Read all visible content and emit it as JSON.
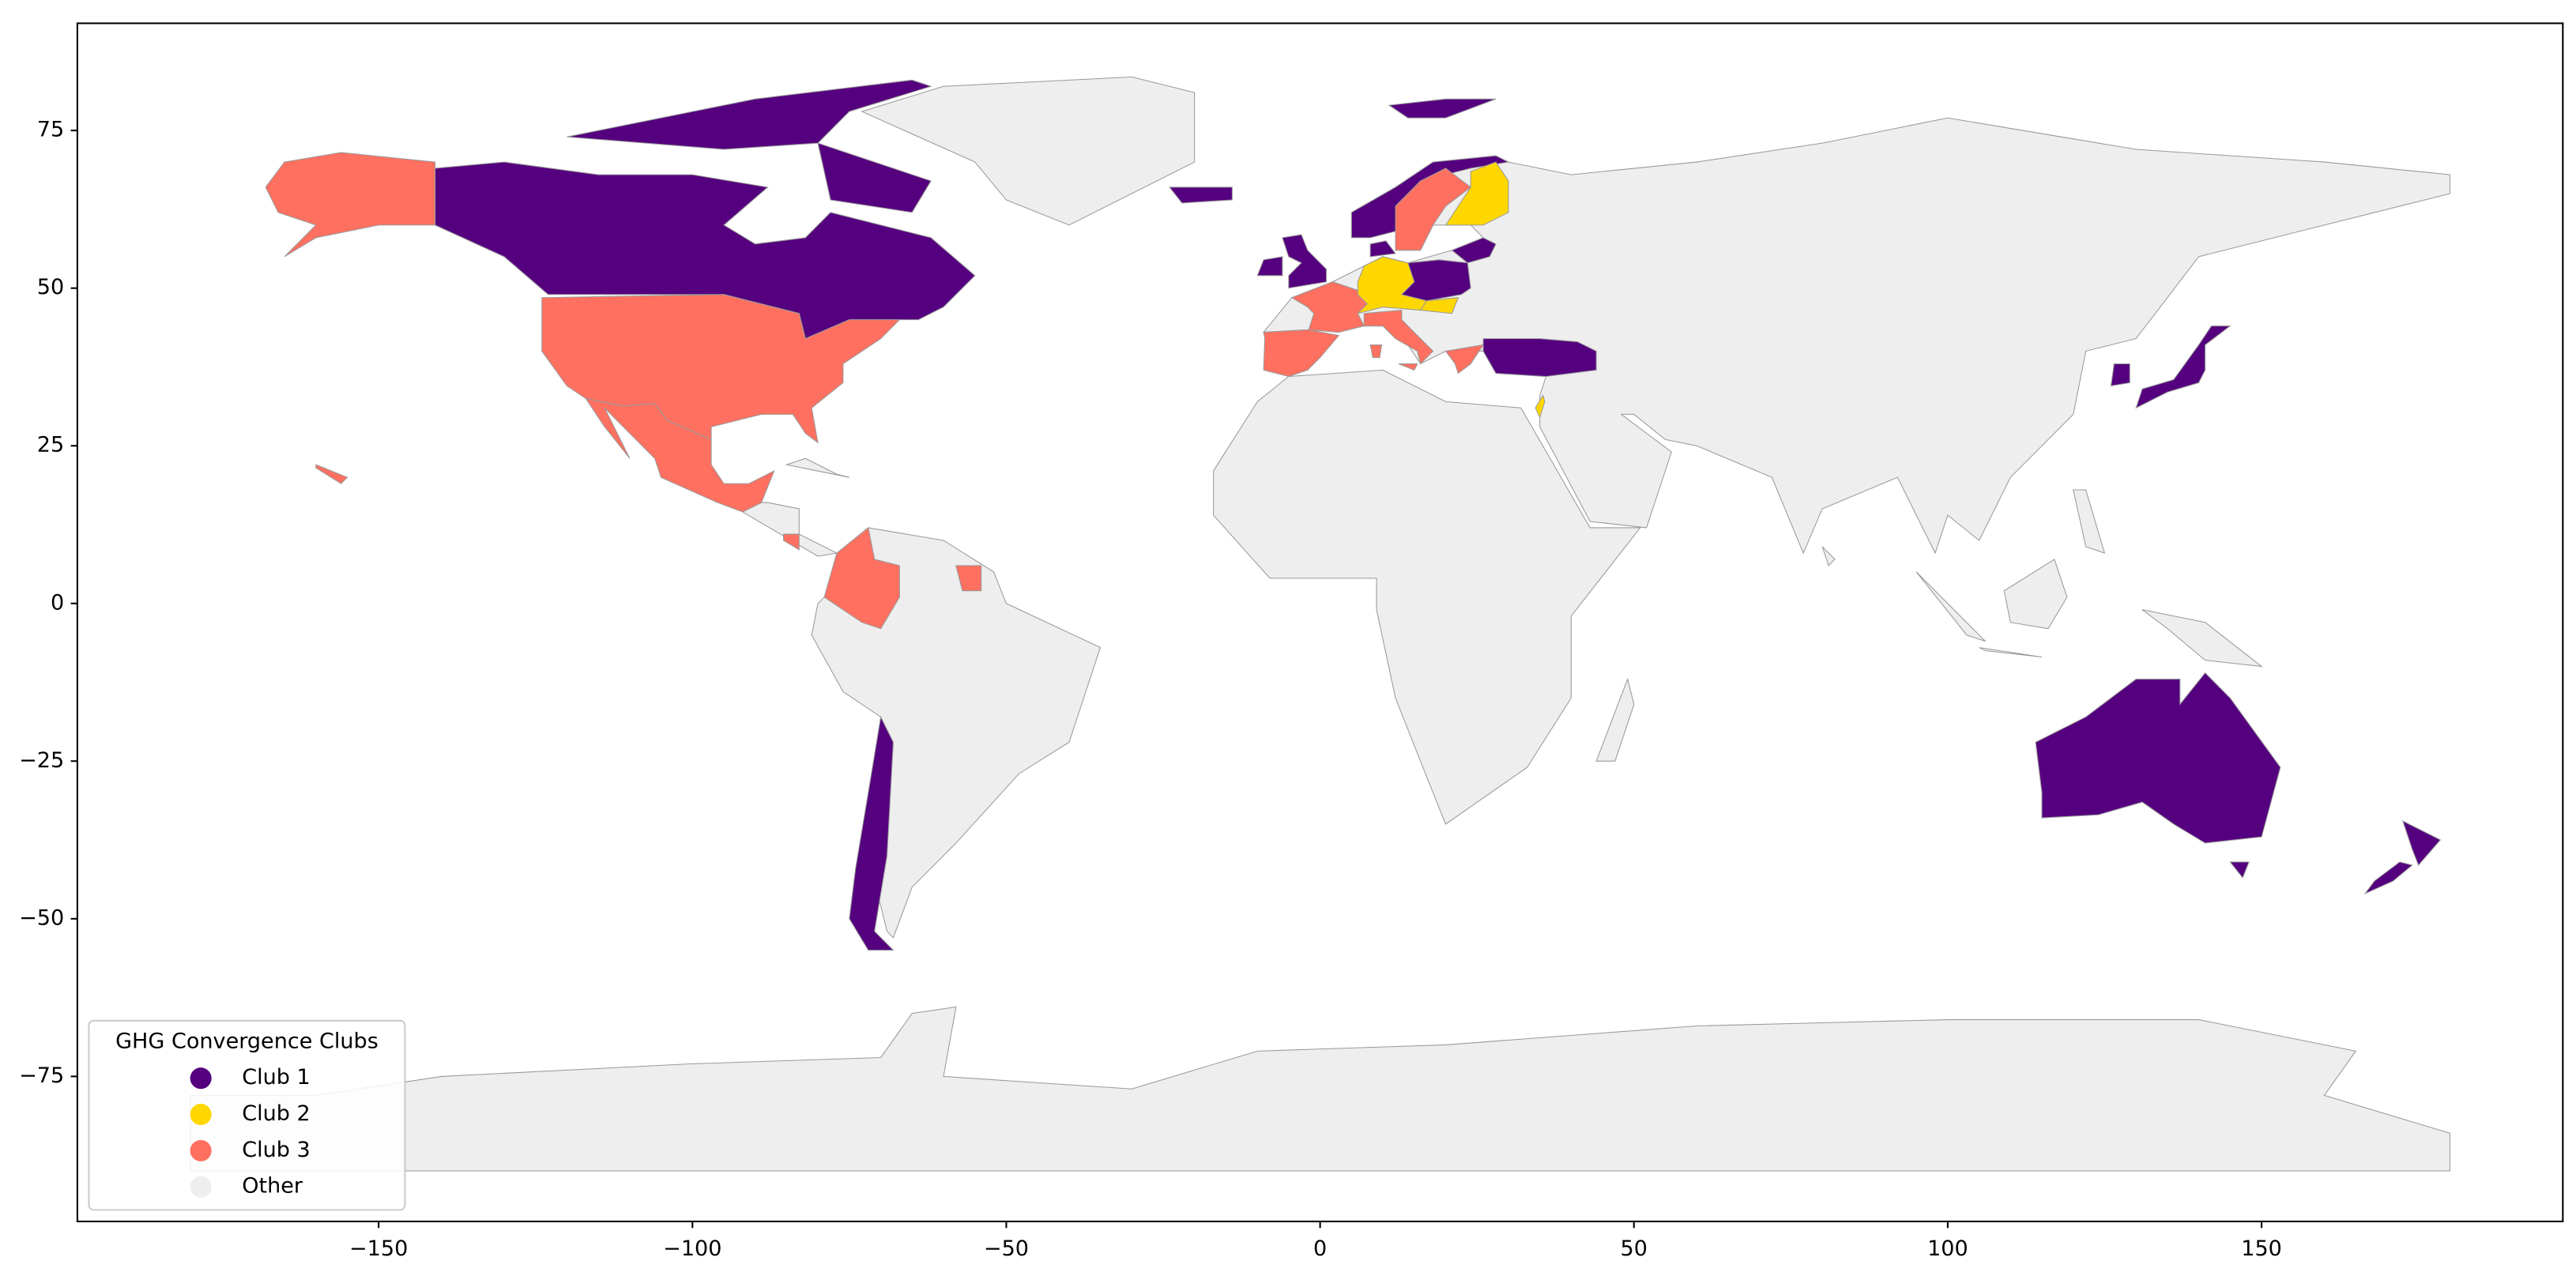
{
  "chart_data": {
    "type": "map",
    "xlim": [
      -198,
      198
    ],
    "ylim": [
      -98,
      92
    ],
    "xticks": [
      {
        "value": -150,
        "label": "−150"
      },
      {
        "value": -100,
        "label": "−100"
      },
      {
        "value": -50,
        "label": "−50"
      },
      0,
      50,
      100,
      150
    ],
    "yticks": [
      {
        "value": -75,
        "label": "−75"
      },
      {
        "value": -50,
        "label": "−50"
      },
      {
        "value": -25,
        "label": "−25"
      },
      0,
      25,
      50,
      75
    ],
    "legend_position": "lower left",
    "legend": {
      "title": "GHG Convergence Clubs",
      "entries": [
        {
          "name": "Club 1",
          "color": "#55007f"
        },
        {
          "name": "Club 2",
          "color": "#ffd700"
        },
        {
          "name": "Club 3",
          "color": "#ff7060"
        },
        {
          "name": "Other",
          "color": "#eeeeee"
        }
      ]
    }
  }
}
